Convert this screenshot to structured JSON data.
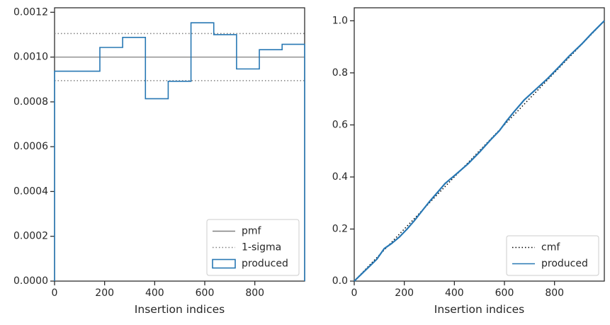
{
  "chart_data": [
    {
      "type": "line",
      "subtype": "step-histogram",
      "title": "",
      "xlabel": "Insertion indices",
      "ylabel": "",
      "xlim": [
        0,
        999
      ],
      "ylim": [
        0,
        0.00122
      ],
      "x_ticks": [
        0,
        200,
        400,
        600,
        800
      ],
      "x_tick_labels": [
        "0",
        "200",
        "400",
        "600",
        "800"
      ],
      "y_ticks": [
        0,
        0.0002,
        0.0004,
        0.0006,
        0.0008,
        0.001,
        0.0012
      ],
      "y_tick_labels": [
        "0.0000",
        "0.0002",
        "0.0004",
        "0.0006",
        "0.0008",
        "0.0010",
        "0.0012"
      ],
      "grid": false,
      "legend_position": "lower-right",
      "series": [
        {
          "name": "pmf",
          "style": "solid",
          "color": "#808080",
          "y": 0.001
        },
        {
          "name": "1-sigma",
          "style": "dotted",
          "color": "#808080",
          "y_values": [
            0.000895,
            0.001105
          ]
        },
        {
          "name": "produced",
          "style": "step",
          "color": "#2878b4",
          "bin_edges": [
            0,
            181,
            272,
            363,
            454,
            545,
            636,
            727,
            818,
            909,
            999
          ],
          "values": [
            0.000937,
            0.001043,
            0.001088,
            0.000814,
            0.000892,
            0.001153,
            0.0011,
            0.000947,
            0.001033,
            0.001057
          ]
        }
      ]
    },
    {
      "type": "line",
      "title": "",
      "xlabel": "Insertion indices",
      "ylabel": "",
      "xlim": [
        0,
        999
      ],
      "ylim": [
        0,
        1.05
      ],
      "x_ticks": [
        0,
        200,
        400,
        600,
        800
      ],
      "x_tick_labels": [
        "0",
        "200",
        "400",
        "600",
        "800"
      ],
      "y_ticks": [
        0,
        0.2,
        0.4,
        0.6,
        0.8,
        1.0
      ],
      "y_tick_labels": [
        "0.0",
        "0.2",
        "0.4",
        "0.6",
        "0.8",
        "1.0"
      ],
      "grid": false,
      "legend_position": "lower-right",
      "series": [
        {
          "name": "cmf",
          "style": "dotted",
          "color": "#000000",
          "x": [
            0,
            999
          ],
          "y": [
            0,
            1.0
          ]
        },
        {
          "name": "produced",
          "style": "solid",
          "color": "#2878b4",
          "x": [
            0,
            30,
            60,
            90,
            120,
            150,
            181,
            210,
            240,
            272,
            300,
            330,
            363,
            400,
            454,
            500,
            545,
            580,
            610,
            636,
            680,
            727,
            770,
            818,
            860,
            909,
            950,
            999
          ],
          "y": [
            0,
            0.028,
            0.056,
            0.084,
            0.125,
            0.145,
            0.17,
            0.199,
            0.232,
            0.271,
            0.305,
            0.338,
            0.375,
            0.405,
            0.45,
            0.495,
            0.543,
            0.578,
            0.617,
            0.648,
            0.697,
            0.738,
            0.776,
            0.823,
            0.866,
            0.911,
            0.953,
            1.0
          ]
        }
      ]
    }
  ]
}
